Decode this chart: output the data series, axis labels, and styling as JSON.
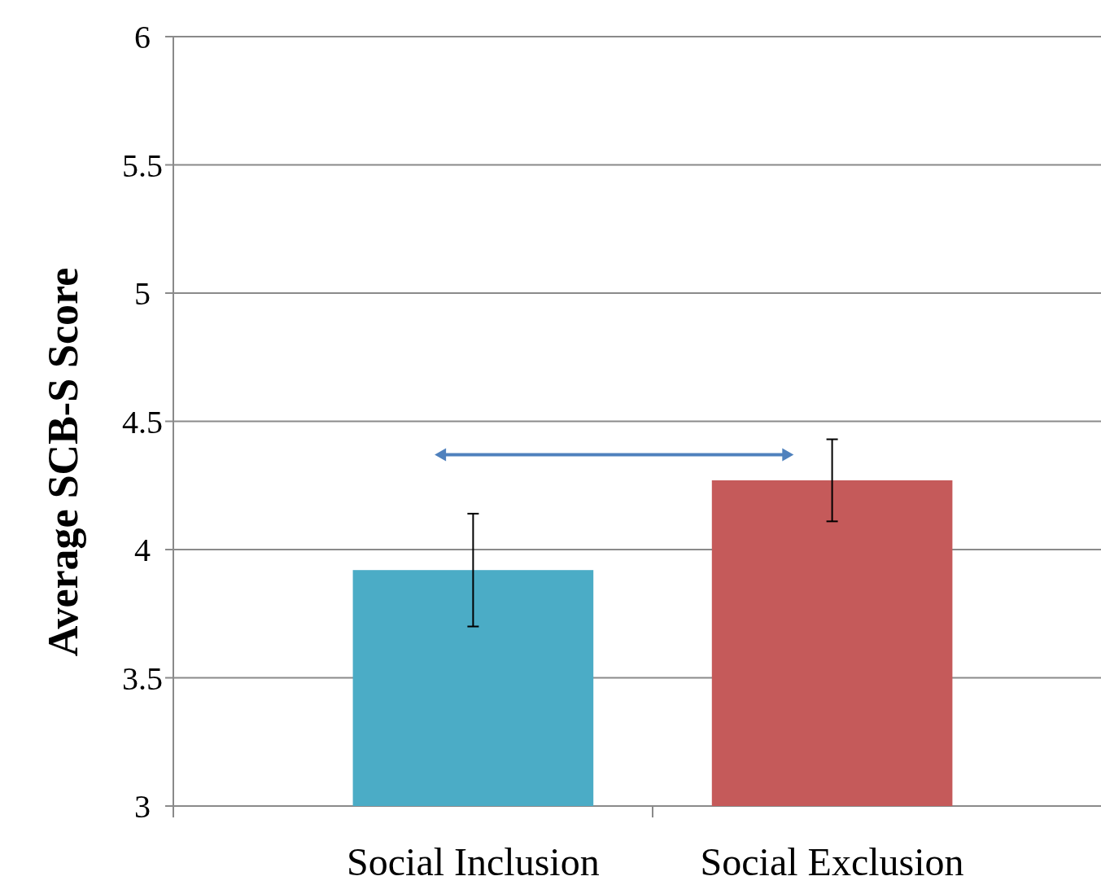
{
  "chart_data": {
    "type": "bar",
    "ylabel": "Average SCB-S Score",
    "categories": [
      "Social Inclusion",
      "Social Exclusion"
    ],
    "values": [
      3.92,
      4.27
    ],
    "colors": [
      "#4bacc6",
      "#c55a5a"
    ],
    "errors": [
      0.22,
      0.16
    ],
    "ylim": [
      3,
      6
    ],
    "yticks": [
      3,
      3.5,
      4,
      4.5,
      5,
      5.5,
      6
    ],
    "grid": "y"
  }
}
